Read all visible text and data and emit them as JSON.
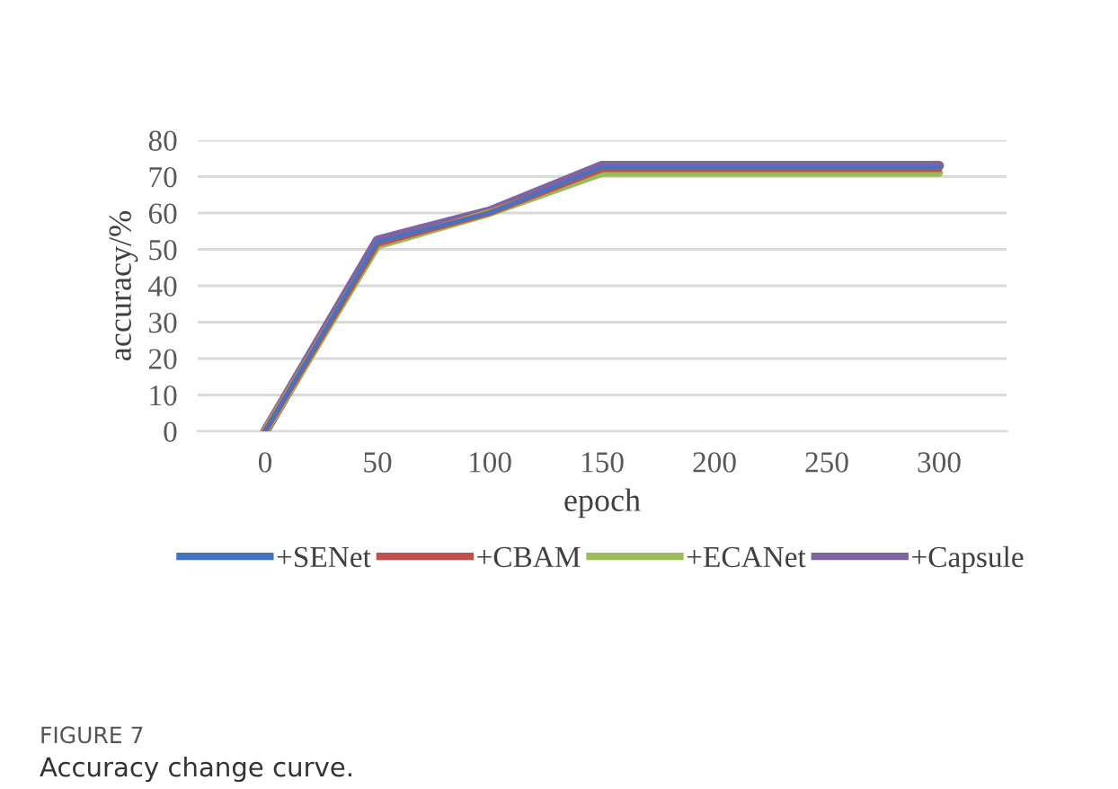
{
  "chart_data": {
    "type": "line",
    "xlabel": "epoch",
    "ylabel": "accuracy/%",
    "categories": [
      "0",
      "50",
      "100",
      "150",
      "200",
      "250",
      "300"
    ],
    "series": [
      {
        "name": "+SENet",
        "color": "#4472c4",
        "values": [
          0,
          52,
          60,
          72.5,
          72.5,
          72.5,
          72.5
        ]
      },
      {
        "name": "+CBAM",
        "color": "#c0504d",
        "values": [
          0,
          51.5,
          60,
          72,
          72,
          72,
          72
        ]
      },
      {
        "name": "+ECANet",
        "color": "#9bbb59",
        "values": [
          0,
          51,
          60,
          71,
          71,
          71,
          71
        ]
      },
      {
        "name": "+Capsule",
        "color": "#8064a2",
        "values": [
          0,
          52.5,
          60.5,
          73,
          73,
          73,
          73
        ]
      }
    ],
    "ylim": [
      0,
      80
    ],
    "yticks": [
      0,
      10,
      20,
      30,
      40,
      50,
      60,
      70,
      80
    ],
    "grid": "y",
    "legend": "bottom",
    "marker": "none",
    "line_style": "solid",
    "annotations": [
      "FIGURE 7",
      "Accuracy change curve."
    ]
  }
}
